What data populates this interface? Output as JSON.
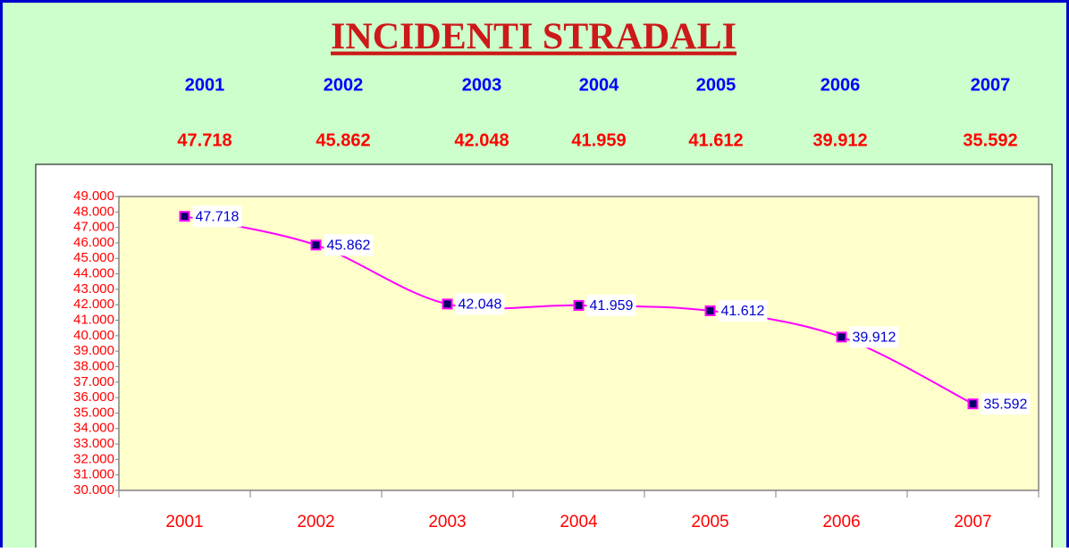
{
  "chart_data": {
    "type": "line",
    "title": "INCIDENTI STRADALI",
    "categories": [
      "2001",
      "2002",
      "2003",
      "2004",
      "2005",
      "2006",
      "2007"
    ],
    "values": [
      47718,
      45862,
      42048,
      41959,
      41612,
      39912,
      35592
    ],
    "value_labels": [
      "47.718",
      "45.862",
      "42.048",
      "41.959",
      "41.612",
      "39.912",
      "35.592"
    ],
    "color": "#ff00ff",
    "marker_color": "#000066",
    "ylim": [
      30000,
      49000
    ],
    "yticks": [
      {
        "value": 30000,
        "label": "30.000"
      },
      {
        "value": 31000,
        "label": "31.000"
      },
      {
        "value": 32000,
        "label": "32.000"
      },
      {
        "value": 33000,
        "label": "33.000"
      },
      {
        "value": 34000,
        "label": "34.000"
      },
      {
        "value": 35000,
        "label": "35.000"
      },
      {
        "value": 36000,
        "label": "36.000"
      },
      {
        "value": 37000,
        "label": "37.000"
      },
      {
        "value": 38000,
        "label": "38.000"
      },
      {
        "value": 39000,
        "label": "39.000"
      },
      {
        "value": 40000,
        "label": "40.000"
      },
      {
        "value": 41000,
        "label": "41.000"
      },
      {
        "value": 42000,
        "label": "42.000"
      },
      {
        "value": 43000,
        "label": "43.000"
      },
      {
        "value": 44000,
        "label": "44.000"
      },
      {
        "value": 45000,
        "label": "45.000"
      },
      {
        "value": 46000,
        "label": "46.000"
      },
      {
        "value": 47000,
        "label": "47.000"
      },
      {
        "value": 48000,
        "label": "48.000"
      },
      {
        "value": 49000,
        "label": "49.000"
      }
    ],
    "grid": false
  }
}
